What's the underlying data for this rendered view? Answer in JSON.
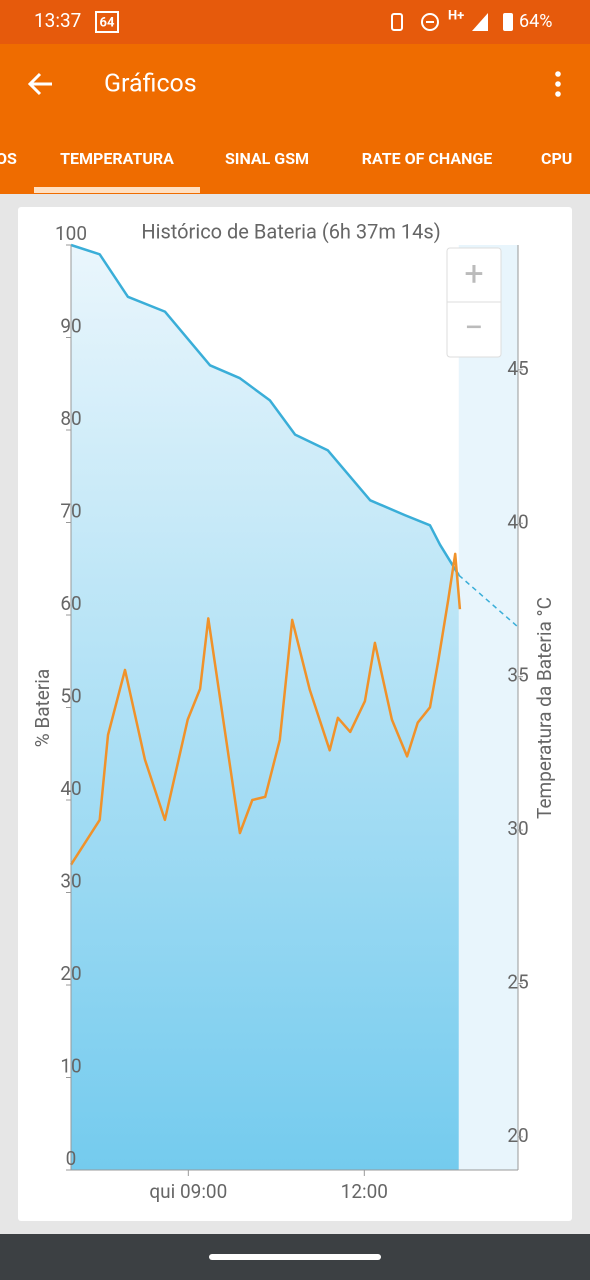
{
  "status_bar": {
    "time": "13:37",
    "badge": "64",
    "network": "H+",
    "battery": "64%"
  },
  "app_bar": {
    "title": "Gráficos"
  },
  "tabs": [
    "OS",
    "TEMPERATURA",
    "SINAL GSM",
    "RATE OF CHANGE",
    "CPU"
  ],
  "zoom": {
    "in": "+",
    "out": "−"
  },
  "chart_data": {
    "type": "line",
    "title": "Histórico de Bateria (6h 37m 14s)",
    "y_label": "% Bateria",
    "y2_label": "Temperatura da Bateria °C",
    "xlim": [
      7,
      14.62
    ],
    "xticks": [
      {
        "value": 9,
        "label": "qui 09:00"
      },
      {
        "value": 12,
        "label": "12:00"
      }
    ],
    "ylim": [
      0,
      100
    ],
    "yticks": [
      0,
      10,
      20,
      30,
      40,
      50,
      60,
      70,
      80,
      90,
      100
    ],
    "y2lim": [
      18.92,
      49.07
    ],
    "y2ticks": [
      20,
      25,
      30,
      35,
      40,
      45
    ],
    "grid": false,
    "series": [
      {
        "color": "#3aaed8",
        "fill": true,
        "axis": "y",
        "x": [
          7,
          7.49,
          7.97,
          8.6,
          9.37,
          9.88,
          10.39,
          10.82,
          11.38,
          12.1,
          12.69,
          13.12,
          13.29,
          13.61
        ],
        "values": [
          100,
          99,
          94.4,
          92.8,
          87,
          85.6,
          83.2,
          79.5,
          77.8,
          72.4,
          70.8,
          69.7,
          67.6,
          64.3
        ]
      },
      {
        "color": "#3aaed8",
        "dashed": true,
        "axis": "y",
        "x": [
          13.61,
          14.62
        ],
        "values": [
          64.3,
          58.7
        ]
      },
      {
        "color": "#f0922a",
        "axis": "y2",
        "x": [
          7,
          7.49,
          7.63,
          7.92,
          8.26,
          8.6,
          8.99,
          9.2,
          9.34,
          9.62,
          9.88,
          10.09,
          10.31,
          10.56,
          10.77,
          11.07,
          11.41,
          11.55,
          11.76,
          12.01,
          12.18,
          12.47,
          12.73,
          12.91,
          13.12,
          13.26,
          13.43,
          13.55,
          13.63
        ],
        "values": [
          28.87,
          30.33,
          33.1,
          35.22,
          32.3,
          30.33,
          33.6,
          34.6,
          36.9,
          33.27,
          29.9,
          30.98,
          31.08,
          32.94,
          36.85,
          34.57,
          32.6,
          33.66,
          33.2,
          34.2,
          36.1,
          33.6,
          32.4,
          33.5,
          34.0,
          35.5,
          37.5,
          39.0,
          37.2
        ]
      }
    ]
  }
}
